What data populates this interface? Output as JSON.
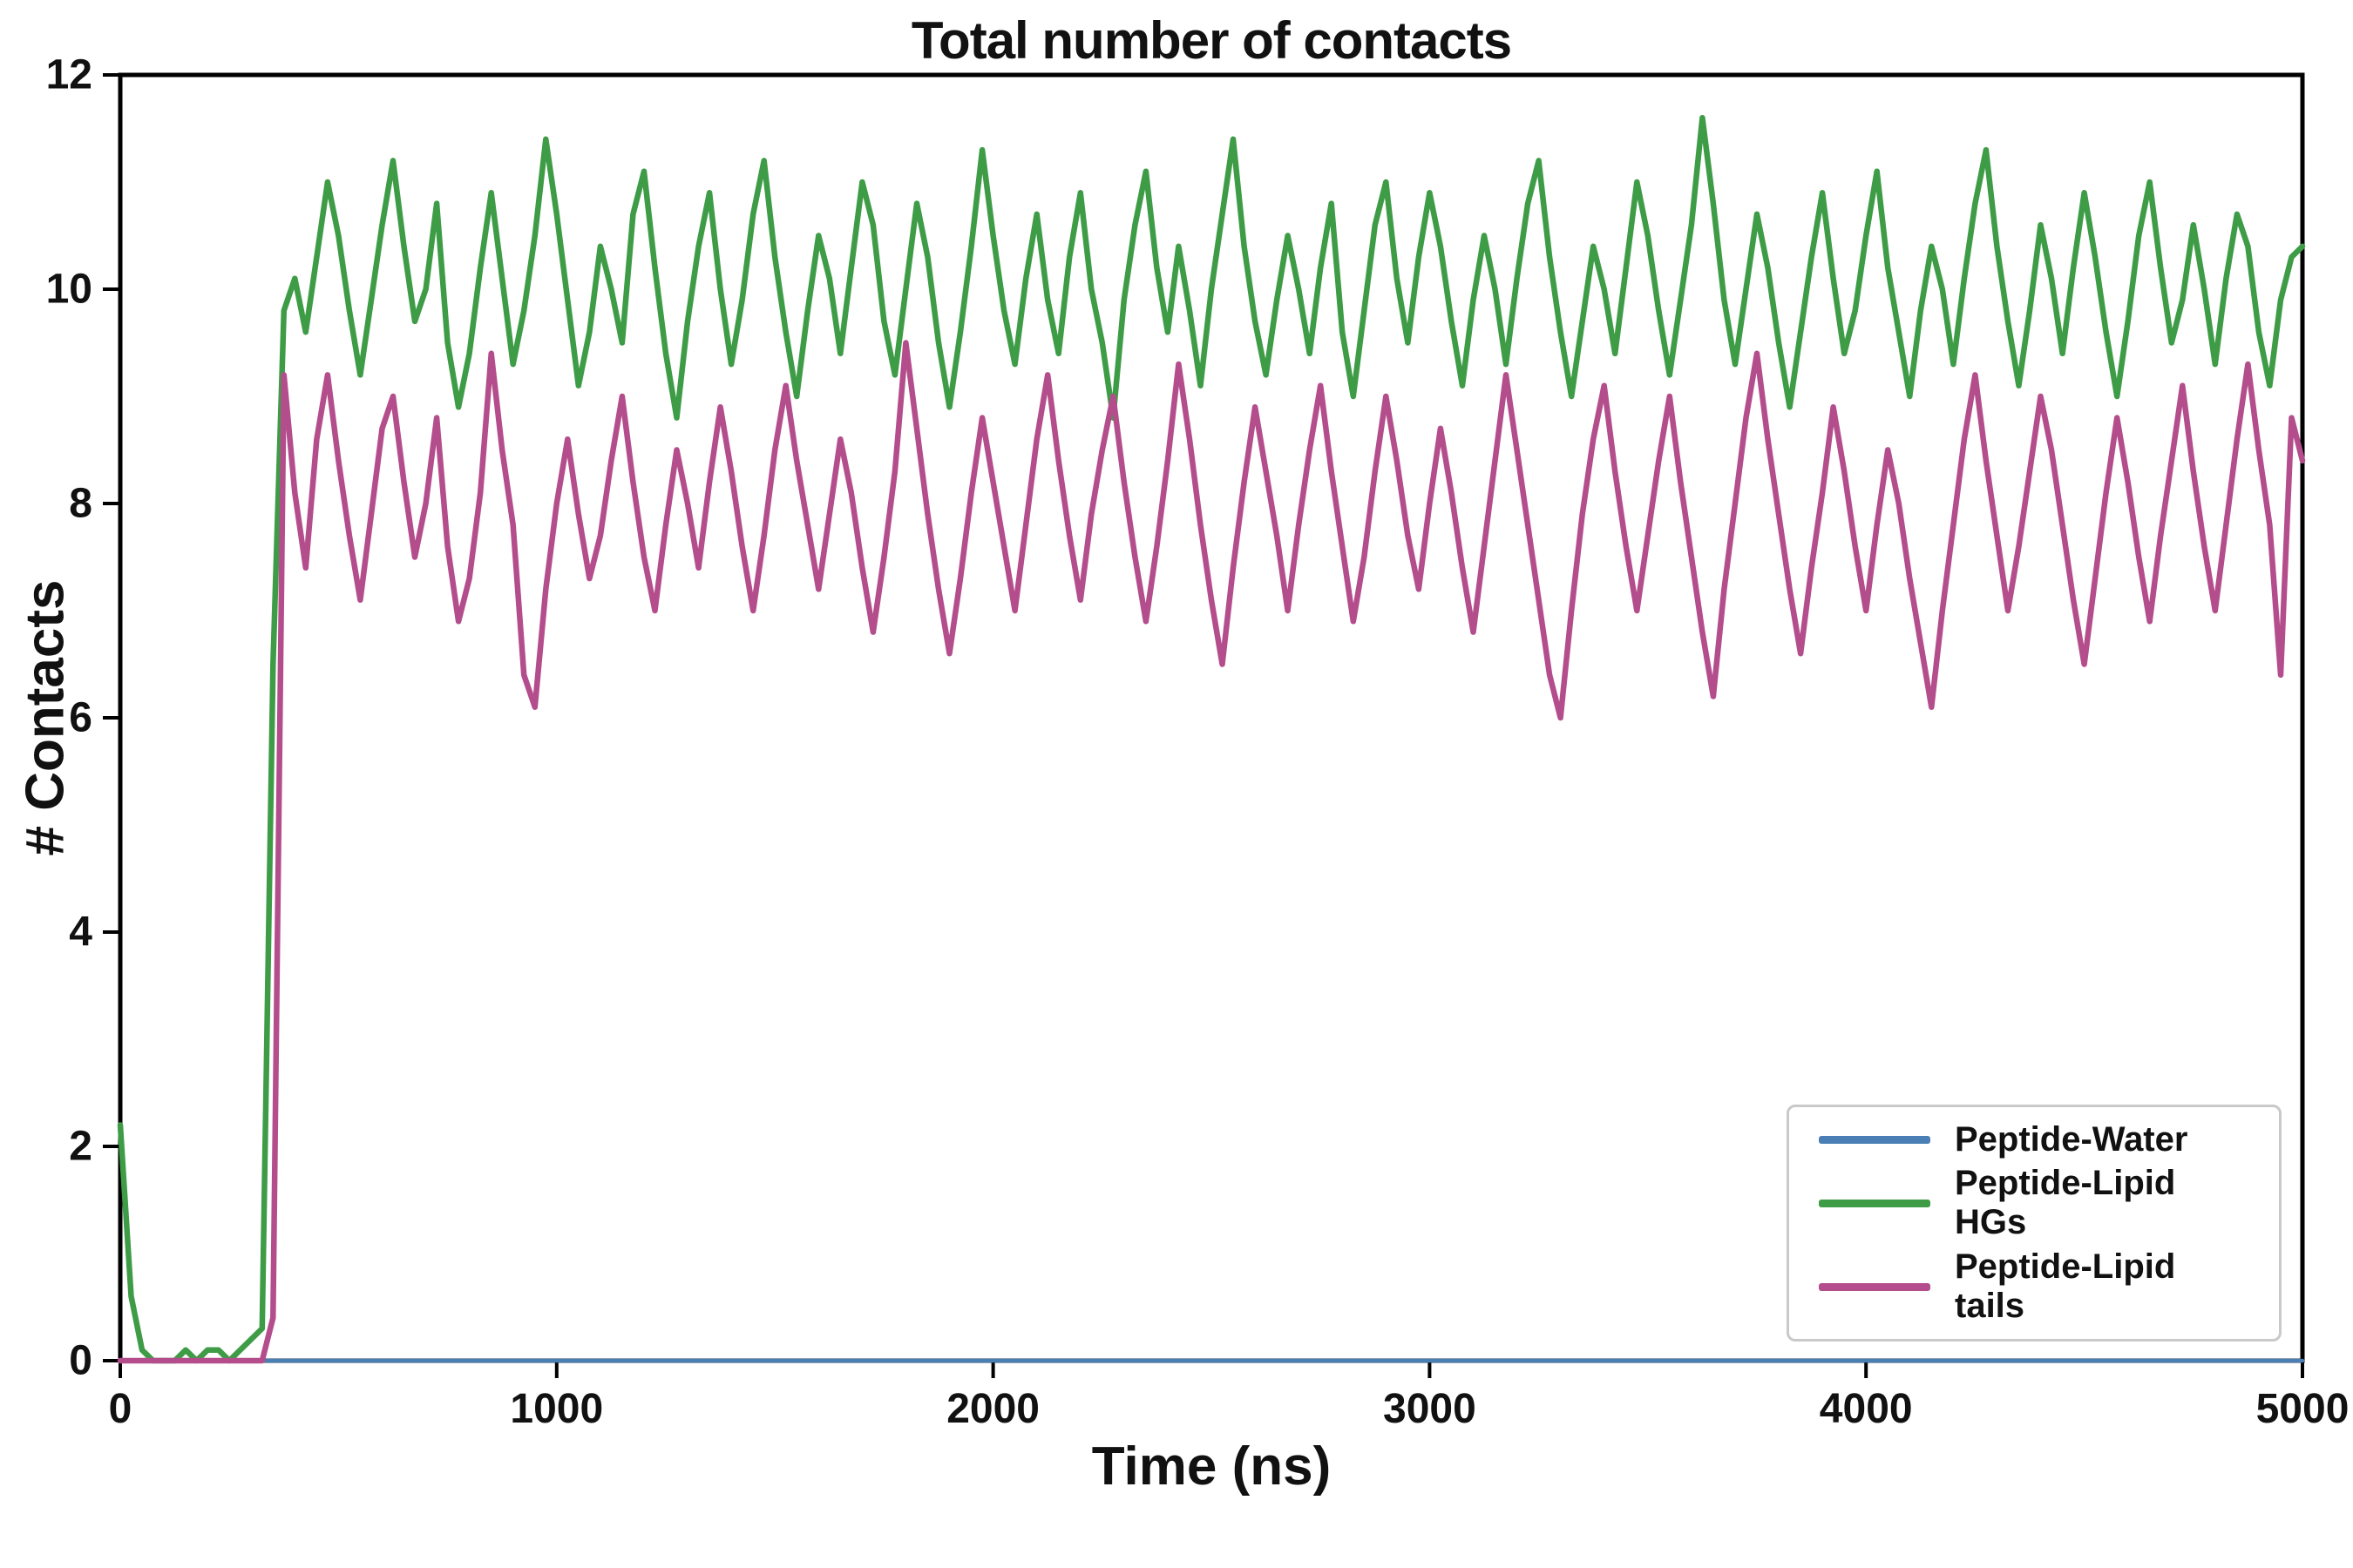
{
  "chart_data": {
    "type": "line",
    "title": "Total number of contacts",
    "xlabel": "Time (ns)",
    "ylabel": "# Contacts",
    "xlim": [
      0,
      5000
    ],
    "ylim": [
      0,
      12
    ],
    "xticks": [
      0,
      1000,
      2000,
      3000,
      4000,
      5000
    ],
    "yticks": [
      0,
      2,
      4,
      6,
      8,
      10,
      12
    ],
    "grid": false,
    "legend_position": "lower right",
    "axis_color": "#000000",
    "series": [
      {
        "name": "Peptide-Water",
        "color": "#4a7fb5",
        "lw": 4.5,
        "x_start": 0,
        "x_step": 5000,
        "y": [
          0.0,
          0.0
        ]
      },
      {
        "name": "Peptide-Lipid HGs",
        "color": "#3e9c47",
        "lw": 6.5,
        "x_start": 0,
        "x_step": 25,
        "y": [
          2.2,
          0.6,
          0.1,
          0.0,
          0.0,
          0.0,
          0.1,
          0.0,
          0.1,
          0.1,
          0.0,
          0.1,
          0.2,
          0.3,
          6.5,
          9.8,
          10.1,
          9.6,
          10.3,
          11.0,
          10.5,
          9.8,
          9.2,
          9.9,
          10.6,
          11.2,
          10.4,
          9.7,
          10.0,
          10.8,
          9.5,
          8.9,
          9.4,
          10.2,
          10.9,
          10.1,
          9.3,
          9.8,
          10.5,
          11.4,
          10.7,
          9.9,
          9.1,
          9.6,
          10.4,
          10.0,
          9.5,
          10.7,
          11.1,
          10.2,
          9.4,
          8.8,
          9.7,
          10.4,
          10.9,
          10.0,
          9.3,
          9.9,
          10.7,
          11.2,
          10.3,
          9.6,
          9.0,
          9.8,
          10.5,
          10.1,
          9.4,
          10.2,
          11.0,
          10.6,
          9.7,
          9.2,
          10.0,
          10.8,
          10.3,
          9.5,
          8.9,
          9.6,
          10.4,
          11.3,
          10.5,
          9.8,
          9.3,
          10.1,
          10.7,
          9.9,
          9.4,
          10.3,
          10.9,
          10.0,
          9.5,
          8.8,
          9.9,
          10.6,
          11.1,
          10.2,
          9.6,
          10.4,
          9.8,
          9.1,
          10.0,
          10.7,
          11.4,
          10.4,
          9.7,
          9.2,
          9.9,
          10.5,
          10.0,
          9.4,
          10.2,
          10.8,
          9.6,
          9.0,
          9.8,
          10.6,
          11.0,
          10.1,
          9.5,
          10.3,
          10.9,
          10.4,
          9.7,
          9.1,
          9.9,
          10.5,
          10.0,
          9.3,
          10.1,
          10.8,
          11.2,
          10.3,
          9.6,
          9.0,
          9.7,
          10.4,
          10.0,
          9.4,
          10.2,
          11.0,
          10.5,
          9.8,
          9.2,
          9.9,
          10.6,
          11.6,
          10.8,
          9.9,
          9.3,
          10.0,
          10.7,
          10.2,
          9.5,
          8.9,
          9.6,
          10.3,
          10.9,
          10.1,
          9.4,
          9.8,
          10.5,
          11.1,
          10.2,
          9.6,
          9.0,
          9.8,
          10.4,
          10.0,
          9.3,
          10.1,
          10.8,
          11.3,
          10.4,
          9.7,
          9.1,
          9.8,
          10.6,
          10.1,
          9.4,
          10.2,
          10.9,
          10.3,
          9.6,
          9.0,
          9.7,
          10.5,
          11.0,
          10.2,
          9.5,
          9.9,
          10.6,
          10.0,
          9.3,
          10.1,
          10.7,
          10.4,
          9.6,
          9.1,
          9.9,
          10.3,
          10.4
        ]
      },
      {
        "name": "Peptide-Lipid tails",
        "color": "#b44d8c",
        "lw": 6.5,
        "x_start": 0,
        "x_step": 25,
        "y": [
          0.0,
          0.0,
          0.0,
          0.0,
          0.0,
          0.0,
          0.0,
          0.0,
          0.0,
          0.0,
          0.0,
          0.0,
          0.0,
          0.0,
          0.4,
          9.2,
          8.1,
          7.4,
          8.6,
          9.2,
          8.4,
          7.7,
          7.1,
          7.9,
          8.7,
          9.0,
          8.2,
          7.5,
          8.0,
          8.8,
          7.6,
          6.9,
          7.3,
          8.1,
          9.4,
          8.5,
          7.8,
          6.4,
          6.1,
          7.2,
          8.0,
          8.6,
          7.9,
          7.3,
          7.7,
          8.4,
          9.0,
          8.2,
          7.5,
          7.0,
          7.8,
          8.5,
          8.0,
          7.4,
          8.2,
          8.9,
          8.3,
          7.6,
          7.0,
          7.7,
          8.5,
          9.1,
          8.4,
          7.8,
          7.2,
          7.9,
          8.6,
          8.1,
          7.4,
          6.8,
          7.5,
          8.3,
          9.5,
          8.7,
          7.9,
          7.2,
          6.6,
          7.3,
          8.1,
          8.8,
          8.2,
          7.6,
          7.0,
          7.8,
          8.6,
          9.2,
          8.4,
          7.7,
          7.1,
          7.9,
          8.5,
          9.0,
          8.2,
          7.5,
          6.9,
          7.6,
          8.4,
          9.3,
          8.6,
          7.8,
          7.1,
          6.5,
          7.4,
          8.2,
          8.9,
          8.3,
          7.7,
          7.0,
          7.8,
          8.5,
          9.1,
          8.3,
          7.6,
          6.9,
          7.5,
          8.3,
          9.0,
          8.4,
          7.7,
          7.2,
          8.0,
          8.7,
          8.1,
          7.4,
          6.8,
          7.6,
          8.4,
          9.2,
          8.5,
          7.8,
          7.1,
          6.4,
          6.0,
          7.0,
          7.9,
          8.6,
          9.1,
          8.3,
          7.6,
          7.0,
          7.7,
          8.4,
          9.0,
          8.2,
          7.5,
          6.8,
          6.2,
          7.2,
          8.0,
          8.8,
          9.4,
          8.6,
          7.9,
          7.2,
          6.6,
          7.4,
          8.1,
          8.9,
          8.3,
          7.6,
          7.0,
          7.8,
          8.5,
          8.0,
          7.3,
          6.7,
          6.1,
          7.0,
          7.8,
          8.6,
          9.2,
          8.4,
          7.7,
          7.0,
          7.6,
          8.3,
          9.0,
          8.5,
          7.8,
          7.1,
          6.5,
          7.3,
          8.1,
          8.8,
          8.2,
          7.5,
          6.9,
          7.7,
          8.4,
          9.1,
          8.3,
          7.6,
          7.0,
          7.8,
          8.6,
          9.3,
          8.5,
          7.8,
          6.4,
          8.8,
          8.4
        ]
      }
    ]
  }
}
